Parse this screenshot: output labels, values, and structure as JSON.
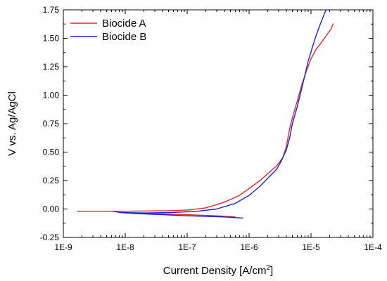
{
  "chart_data": {
    "type": "line",
    "xlabel": "Current Density [A/cm",
    "xlabel_sup": "2",
    "xlabel_end": "]",
    "ylabel": "V vs. Ag/AgCl",
    "xscale": "log",
    "xlim": [
      1e-09,
      0.0001
    ],
    "ylim": [
      -0.25,
      1.75
    ],
    "x_ticks": [
      1e-09,
      1e-08,
      1e-07,
      1e-06,
      1e-05,
      0.0001
    ],
    "x_tick_labels": [
      "1E-9",
      "1E-8",
      "1E-7",
      "1E-6",
      "1E-5",
      "1E-4"
    ],
    "y_ticks": [
      -0.25,
      0,
      0.25,
      0.5,
      0.75,
      1.0,
      1.25,
      1.5,
      1.75
    ],
    "y_tick_labels": [
      "-0.25",
      "0.00",
      "0.25",
      "0.50",
      "0.75",
      "1.00",
      "1.25",
      "1.50",
      "1.75"
    ],
    "grid": false,
    "legend_position": "top-left",
    "series": [
      {
        "name": "Biocide A",
        "color": "#e8262a",
        "points": [
          [
            6e-07,
            -0.07
          ],
          [
            3e-07,
            -0.06
          ],
          [
            1e-07,
            -0.05
          ],
          [
            5e-08,
            -0.045
          ],
          [
            2e-08,
            -0.04
          ],
          [
            1e-08,
            -0.035
          ],
          [
            8e-09,
            -0.03
          ],
          [
            6e-09,
            -0.02
          ],
          [
            3e-09,
            -0.02
          ],
          [
            1.7e-09,
            -0.02
          ],
          [
            1e-08,
            -0.02
          ],
          [
            5e-08,
            -0.015
          ],
          [
            1e-07,
            -0.01
          ],
          [
            2e-07,
            0.01
          ],
          [
            4e-07,
            0.06
          ],
          [
            7e-07,
            0.12
          ],
          [
            1e-06,
            0.18
          ],
          [
            1.5e-06,
            0.25
          ],
          [
            2e-06,
            0.31
          ],
          [
            2.8e-06,
            0.38
          ],
          [
            3.5e-06,
            0.45
          ],
          [
            4e-06,
            0.55
          ],
          [
            4.5e-06,
            0.7
          ],
          [
            5e-06,
            0.8
          ],
          [
            6e-06,
            0.95
          ],
          [
            7e-06,
            1.08
          ],
          [
            8.5e-06,
            1.22
          ],
          [
            1e-05,
            1.32
          ],
          [
            1.2e-05,
            1.4
          ],
          [
            1.5e-05,
            1.47
          ],
          [
            1.8e-05,
            1.53
          ],
          [
            2.1e-05,
            1.58
          ],
          [
            2.3e-05,
            1.63
          ]
        ]
      },
      {
        "name": "Biocide B",
        "color": "#1b1fd6",
        "points": [
          [
            8e-07,
            -0.08
          ],
          [
            4e-07,
            -0.07
          ],
          [
            1e-07,
            -0.06
          ],
          [
            4e-08,
            -0.05
          ],
          [
            1.5e-08,
            -0.04
          ],
          [
            8e-09,
            -0.03
          ],
          [
            2e-08,
            -0.035
          ],
          [
            6e-08,
            -0.03
          ],
          [
            1.5e-07,
            -0.02
          ],
          [
            3e-07,
            0.0
          ],
          [
            6e-07,
            0.05
          ],
          [
            1e-06,
            0.12
          ],
          [
            1.5e-06,
            0.2
          ],
          [
            2e-06,
            0.27
          ],
          [
            2.8e-06,
            0.35
          ],
          [
            3.3e-06,
            0.42
          ],
          [
            4e-06,
            0.52
          ],
          [
            4.5e-06,
            0.62
          ],
          [
            5e-06,
            0.75
          ],
          [
            6e-06,
            0.9
          ],
          [
            7e-06,
            1.05
          ],
          [
            8e-06,
            1.18
          ],
          [
            9e-06,
            1.3
          ],
          [
            1.05e-05,
            1.42
          ],
          [
            1.2e-05,
            1.52
          ],
          [
            1.4e-05,
            1.62
          ],
          [
            1.6e-05,
            1.7
          ],
          [
            1.75e-05,
            1.75
          ]
        ]
      }
    ]
  }
}
